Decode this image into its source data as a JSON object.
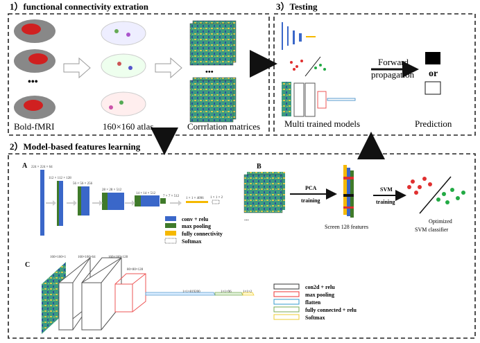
{
  "sections": {
    "s1": "1）functional connectivity extration",
    "s2": "2）Model-based features learning",
    "s3": "3）Testing"
  },
  "panel1": {
    "label_bold": "Bold-fMRI",
    "label_atlas": "160×160 atlas",
    "label_matrices": "Corrrlation matrices",
    "ellipsis": "•••"
  },
  "panel3": {
    "forward": "Forward",
    "propagation": "propagation",
    "or": "or",
    "multi": "Multi trained models",
    "prediction": "Prediction"
  },
  "panelA": {
    "letter": "A",
    "dims": [
      "224 × 224 × 64",
      "112 × 112 × 128",
      "56 × 56 × 256",
      "28 × 28 × 512",
      "14 × 14 × 512",
      "7 × 7 × 512",
      "1 × 1 × 4096",
      "1 × 1 × 2"
    ],
    "legend": [
      "conv + relu",
      "max pooling",
      "fully connectivity",
      "Softmax"
    ]
  },
  "panelB": {
    "letter": "B",
    "pca": "PCA",
    "pca_training": "training",
    "svm": "SVM",
    "svm_training": "training",
    "screen": "Screen  128 features",
    "optimized": "Optimized",
    "classifier": "SVM classifier",
    "ellipsis": "..."
  },
  "panelC": {
    "letter": "C",
    "dims": [
      "160×160×1",
      "160×160×64",
      "160×160×128",
      "80×80×128",
      "1×1×819200",
      "1×1×96",
      "1×1×2"
    ],
    "legend": [
      "con2d + relu",
      "max pooling",
      "flatten",
      "fully connected  + relu",
      "Softmax"
    ]
  },
  "colors": {
    "conv": "#3a67c9",
    "pool": "#3f7a2a",
    "fc": "#f5b800",
    "matrix": "#3a8f7a",
    "red": "#e03030",
    "green": "#22aa44"
  }
}
